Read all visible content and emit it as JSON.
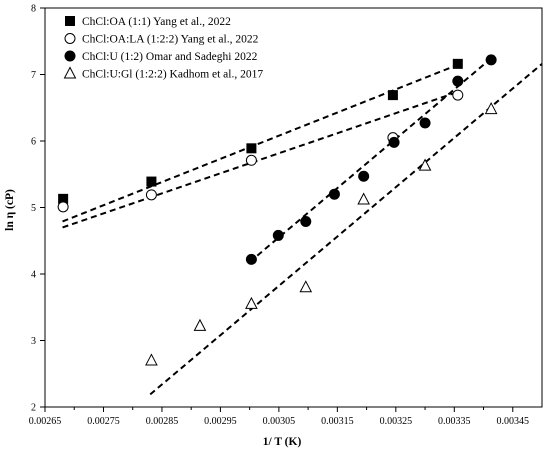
{
  "chart_data": {
    "type": "scatter",
    "xlabel": "1/ T (K)",
    "ylabel": "ln η (cP)",
    "xlim": [
      0.00265,
      0.0035
    ],
    "ylim": [
      2,
      8
    ],
    "x_ticks": [
      "0.00265",
      "0.00275",
      "0.00285",
      "0.00295",
      "0.00305",
      "0.00315",
      "0.00325",
      "0.00335",
      "0.00345"
    ],
    "y_ticks": [
      "2",
      "3",
      "4",
      "5",
      "6",
      "7",
      "8"
    ],
    "grid": false,
    "legend_position": "top-left",
    "series": [
      {
        "name": "ChCl:OA (1:1) Yang et al., 2022",
        "marker": "filled-square",
        "x": [
          0.002681,
          0.002832,
          0.003003,
          0.003245,
          0.003356
        ],
        "y": [
          5.13,
          5.39,
          5.89,
          6.69,
          7.16
        ],
        "trendline": {
          "x": [
            0.00268,
            0.00336
          ],
          "y": [
            4.79,
            7.16
          ]
        }
      },
      {
        "name": "ChCl:OA:LA (1:2:2) Yang et al., 2022",
        "marker": "open-circle",
        "x": [
          0.002681,
          0.002832,
          0.003003,
          0.003245,
          0.003356
        ],
        "y": [
          5.01,
          5.19,
          5.71,
          6.05,
          6.69
        ],
        "trendline": {
          "x": [
            0.00268,
            0.00336
          ],
          "y": [
            4.7,
            6.75
          ]
        }
      },
      {
        "name": "ChCl:U (1:2) Omar and Sadeghi 2022",
        "marker": "filled-circle",
        "x": [
          0.003003,
          0.003049,
          0.003096,
          0.003145,
          0.003195,
          0.003247,
          0.0033,
          0.003356,
          0.003413
        ],
        "y": [
          4.22,
          4.58,
          4.79,
          5.2,
          5.47,
          5.98,
          6.27,
          6.9,
          7.22
        ],
        "trendline": {
          "x": [
            0.003,
            0.00341
          ],
          "y": [
            4.18,
            7.22
          ]
        }
      },
      {
        "name": "ChCl:U:Gl (1:2:2) Kadhom et al., 2017",
        "marker": "open-triangle",
        "x": [
          0.002832,
          0.002915,
          0.003003,
          0.003096,
          0.003195,
          0.0033,
          0.003413
        ],
        "y": [
          2.7,
          3.22,
          3.55,
          3.8,
          5.12,
          5.63,
          6.48
        ],
        "trendline": {
          "x": [
            0.00283,
            0.0035
          ],
          "y": [
            2.19,
            7.16
          ]
        }
      }
    ]
  }
}
